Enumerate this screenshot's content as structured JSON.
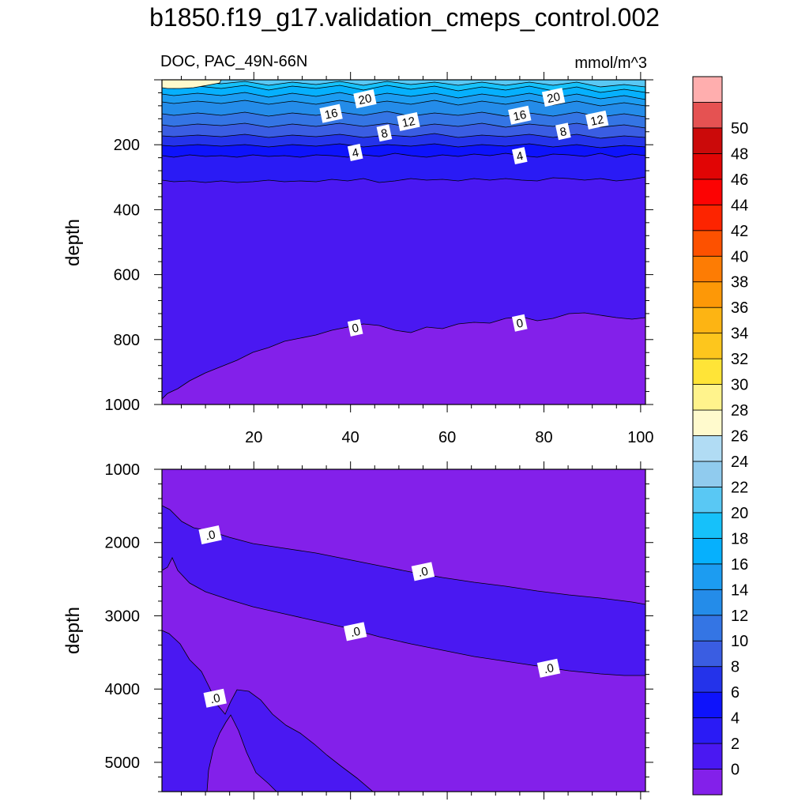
{
  "title": "b1850.f19_g17.validation_cmeps_control.002",
  "chart_data": [
    {
      "type": "contour",
      "panel": "top",
      "left_label": "DOC, PAC_49N-66N",
      "right_label": "mmol/m^3",
      "ylabel": "depth",
      "ylim": [
        0,
        1000
      ],
      "y_inverted": true,
      "yticks": [
        200,
        400,
        600,
        800,
        1000
      ],
      "xlim": [
        1,
        101
      ],
      "xticks": [
        20,
        40,
        60,
        80,
        100
      ],
      "contour_labels": [
        {
          "text": "20",
          "x": 43,
          "y": 60
        },
        {
          "text": "20",
          "x": 82,
          "y": 55
        },
        {
          "text": "16",
          "x": 36,
          "y": 105
        },
        {
          "text": "16",
          "x": 75,
          "y": 110
        },
        {
          "text": "12",
          "x": 52,
          "y": 130
        },
        {
          "text": "12",
          "x": 91,
          "y": 125
        },
        {
          "text": "8",
          "x": 47,
          "y": 165
        },
        {
          "text": "8",
          "x": 84,
          "y": 160
        },
        {
          "text": "4",
          "x": 41,
          "y": 225
        },
        {
          "text": "4",
          "x": 75,
          "y": 235
        },
        {
          "text": "0",
          "x": 41,
          "y": 765
        },
        {
          "text": "0",
          "x": 75,
          "y": 750
        }
      ]
    },
    {
      "type": "contour",
      "panel": "bottom",
      "ylabel": "depth",
      "ylim": [
        1000,
        5400
      ],
      "y_inverted": true,
      "yticks": [
        1000,
        2000,
        3000,
        4000,
        5000
      ],
      "xlim": [
        1,
        101
      ],
      "contour_labels": [
        {
          "text": ".0",
          "x": 11,
          "y": 1900
        },
        {
          "text": ".0",
          "x": 55,
          "y": 2400
        },
        {
          "text": ".0",
          "x": 41,
          "y": 3220
        },
        {
          "text": ".0",
          "x": 81,
          "y": 3720
        },
        {
          "text": ".0",
          "x": 12,
          "y": 4130
        }
      ]
    }
  ],
  "colorbar": {
    "labels": [
      "0",
      "2",
      "4",
      "6",
      "8",
      "10",
      "12",
      "14",
      "16",
      "18",
      "20",
      "22",
      "24",
      "26",
      "28",
      "30",
      "32",
      "34",
      "36",
      "38",
      "40",
      "42",
      "44",
      "46",
      "48",
      "50"
    ],
    "colors": [
      "#8320ea",
      "#4a18f2",
      "#2a1bf5",
      "#0e13fb",
      "#2433ea",
      "#3a5de2",
      "#3475e4",
      "#248ce9",
      "#1c9cf1",
      "#06b0fd",
      "#16c1fa",
      "#59c8f4",
      "#90cbee",
      "#b1dcf4",
      "#fffacd",
      "#fff38c",
      "#ffe437",
      "#fdc61d",
      "#fdb413",
      "#fd9807",
      "#fd7c04",
      "#fd5100",
      "#fd2400",
      "#fc0303",
      "#e10505",
      "#cb0a0a",
      "#e55252",
      "#ffaeae"
    ]
  },
  "field_colors": {
    "band_22": "#b1dcf4",
    "band_20": "#90cbee",
    "band_18": "#59c8f4",
    "band_16": "#16c1fa",
    "band_14": "#06b0fd",
    "band_12": "#1c9cf1",
    "band_10": "#248ce9",
    "band_8": "#3475e4",
    "band_6": "#3a5de2",
    "band_4": "#2433ea",
    "band_2": "#0e13fb",
    "band_0": "#2a1bf5",
    "band_neg": "#4a18f2",
    "band_low": "#8320ea",
    "band_top": "#fffacd"
  }
}
